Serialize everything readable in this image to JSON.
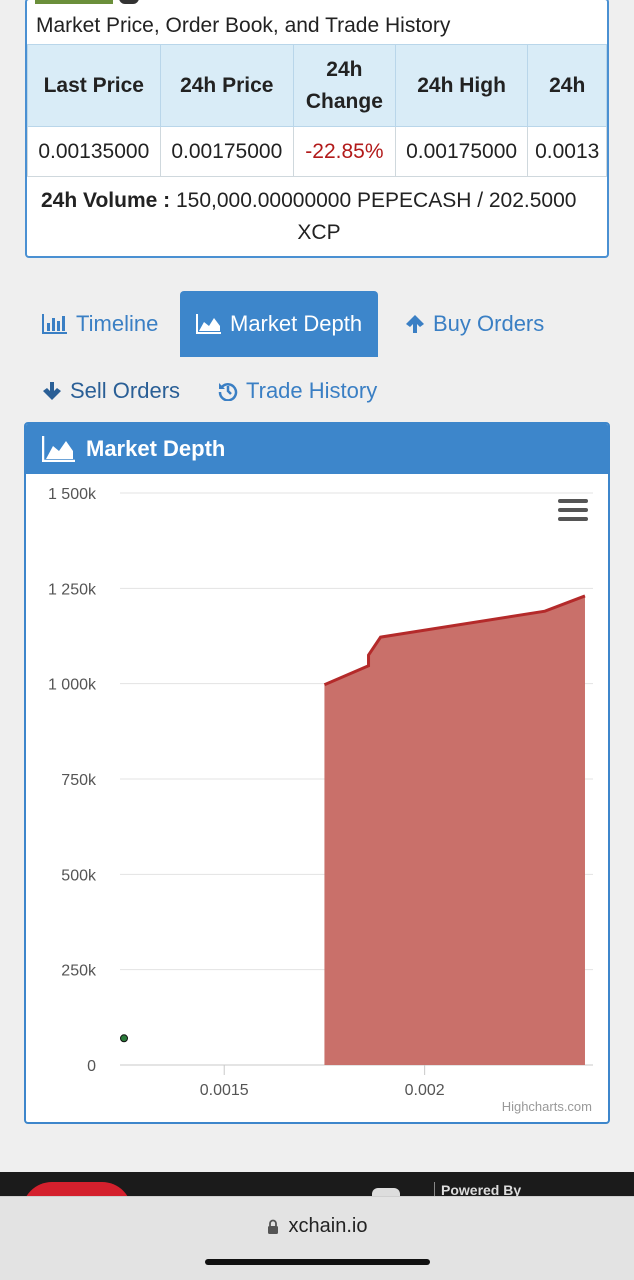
{
  "summary": {
    "subtitle": "Market Price, Order Book, and Trade History",
    "headers": [
      "Last Price",
      "24h Price",
      "24h Change",
      "24h High",
      "24h"
    ],
    "values": [
      "0.00135000",
      "0.00175000",
      "-22.85%",
      "0.00175000",
      "0.0013"
    ],
    "volume_label": "24h Volume :",
    "volume_value": "150,000.00000000 PEPECASH / 202.5000",
    "volume_unit": "XCP"
  },
  "tabs": [
    {
      "label": "Timeline",
      "icon": "bar-chart-icon",
      "active": false
    },
    {
      "label": "Market Depth",
      "icon": "area-chart-icon",
      "active": true
    },
    {
      "label": "Buy Orders",
      "icon": "arrow-up-icon",
      "active": false
    },
    {
      "label": "Sell Orders",
      "icon": "arrow-down-icon",
      "active": false
    },
    {
      "label": "Trade History",
      "icon": "history-icon",
      "active": false
    }
  ],
  "chart_panel": {
    "title": "Market Depth",
    "credit": "Highcharts.com"
  },
  "chart_data": {
    "type": "area",
    "title": "",
    "xlabel": "",
    "ylabel": "",
    "xlim": [
      0.00124,
      0.00242
    ],
    "ylim": [
      0,
      1500000
    ],
    "y_ticks": [
      0,
      250000,
      500000,
      750000,
      1000000,
      1250000,
      1500000
    ],
    "y_tick_labels": [
      "0",
      "250k",
      "500k",
      "750k",
      "1 000k",
      "1 250k",
      "1 500k"
    ],
    "x_ticks": [
      0.0015,
      0.002
    ],
    "x_tick_labels": [
      "0.0015",
      "0.002"
    ],
    "grid": true,
    "series": [
      {
        "type": "area",
        "color": "#b42a2a",
        "fill": "#c9706a",
        "points": [
          [
            0.00175,
            0
          ],
          [
            0.00175,
            997000
          ],
          [
            0.00186,
            1047000
          ],
          [
            0.00186,
            1075000
          ],
          [
            0.00189,
            1122000
          ],
          [
            0.0023,
            1190000
          ],
          [
            0.0024,
            1230000
          ],
          [
            0.0024,
            0
          ]
        ]
      },
      {
        "type": "scatter",
        "color": "#2a7a3a",
        "points": [
          [
            0.00125,
            70000
          ]
        ]
      }
    ]
  },
  "browser": {
    "url": "xchain.io",
    "footer_text": "Powered By"
  }
}
